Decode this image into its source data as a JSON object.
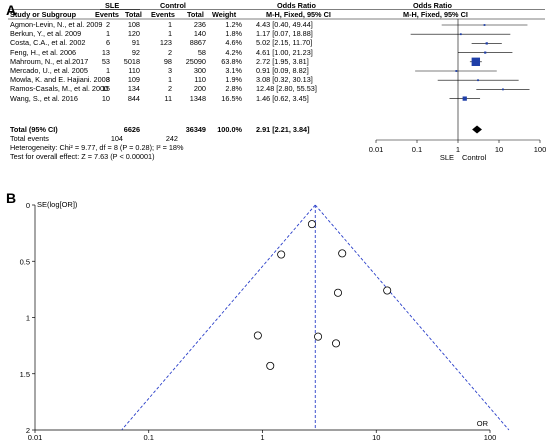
{
  "panel_a": {
    "label": "A",
    "header": {
      "group_sle": "SLE",
      "group_control": "Control",
      "col_study": "Study or Subgroup",
      "col_events1": "Events",
      "col_total1": "Total",
      "col_events2": "Events",
      "col_total2": "Total",
      "col_weight": "Weight",
      "col_or": "Odds Ratio",
      "col_or_sub": "M-H, Fixed, 95% CI",
      "col_plot": "Odds Ratio",
      "col_plot_sub": "M-H, Fixed, 95% CI"
    },
    "studies": [
      {
        "name": "Agmon-Levin, N., et al. 2009",
        "e1": "2",
        "t1": "108",
        "e2": "1",
        "t2": "236",
        "w": "1.2%",
        "ci": "4.43 [0.40, 49.44]",
        "or": 4.43,
        "lo": 0.4,
        "hi": 49.44,
        "wt": 1.2
      },
      {
        "name": "Berkun, Y., et al. 2009",
        "e1": "1",
        "t1": "120",
        "e2": "1",
        "t2": "140",
        "w": "1.8%",
        "ci": "1.17 [0.07, 18.88]",
        "or": 1.17,
        "lo": 0.07,
        "hi": 18.88,
        "wt": 1.8
      },
      {
        "name": "Costa, C.A., et al. 2002",
        "e1": "6",
        "t1": "91",
        "e2": "123",
        "t2": "8867",
        "w": "4.6%",
        "ci": "5.02 [2.15, 11.70]",
        "or": 5.02,
        "lo": 2.15,
        "hi": 11.7,
        "wt": 4.6
      },
      {
        "name": "Feng, H., et al. 2006",
        "e1": "13",
        "t1": "92",
        "e2": "2",
        "t2": "58",
        "w": "4.2%",
        "ci": "4.61 [1.00, 21.23]",
        "or": 4.61,
        "lo": 1.0,
        "hi": 21.23,
        "wt": 4.2
      },
      {
        "name": "Mahroum, N., et al.2017",
        "e1": "53",
        "t1": "5018",
        "e2": "98",
        "t2": "25090",
        "w": "63.8%",
        "ci": "2.72 [1.95, 3.81]",
        "or": 2.72,
        "lo": 1.95,
        "hi": 3.81,
        "wt": 63.8
      },
      {
        "name": "Mercado, U., et al. 2005",
        "e1": "1",
        "t1": "110",
        "e2": "3",
        "t2": "300",
        "w": "3.1%",
        "ci": "0.91 [0.09, 8.82]",
        "or": 0.91,
        "lo": 0.09,
        "hi": 8.82,
        "wt": 3.1
      },
      {
        "name": "Mowla, K. and E. Hajiani. 2008",
        "e1": "3",
        "t1": "109",
        "e2": "1",
        "t2": "110",
        "w": "1.9%",
        "ci": "3.08 [0.32, 30.13]",
        "or": 3.08,
        "lo": 0.32,
        "hi": 30.13,
        "wt": 1.9
      },
      {
        "name": "Ramos-Casals, M., et al. 2000",
        "e1": "15",
        "t1": "134",
        "e2": "2",
        "t2": "200",
        "w": "2.8%",
        "ci": "12.48 [2.80, 55.53]",
        "or": 12.48,
        "lo": 2.8,
        "hi": 55.53,
        "wt": 2.8
      },
      {
        "name": "Wang, S., et al. 2016",
        "e1": "10",
        "t1": "844",
        "e2": "11",
        "t2": "1348",
        "w": "16.5%",
        "ci": "1.46 [0.62, 3.45]",
        "or": 1.46,
        "lo": 0.62,
        "hi": 3.45,
        "wt": 16.5
      }
    ],
    "total": {
      "name": "Total (95% CI)",
      "t1": "6626",
      "t2": "36349",
      "w": "100.0%",
      "ci": "2.91 [2.21, 3.84]",
      "or": 2.91,
      "lo": 2.21,
      "hi": 3.84
    },
    "total_events": {
      "label": "Total events",
      "e1": "104",
      "e2": "242"
    },
    "heterogeneity": "Heterogeneity: Chi² = 9.77, df = 8 (P = 0.28); I² = 18%",
    "overall_effect": "Test for overall effect: Z = 7.63 (P < 0.00001)",
    "axis_ticks": [
      "0.01",
      "0.1",
      "1",
      "10",
      "100"
    ],
    "favours_left": "SLE",
    "favours_right": "Control",
    "colors": {
      "square": "#1f3fa8",
      "diamond": "#000000"
    }
  },
  "panel_b": {
    "label": "B",
    "chart_data": {
      "type": "scatter",
      "title": "",
      "xlabel": "OR",
      "ylabel": "SE(log[OR])",
      "x_scale": "log",
      "xlim": [
        0.01,
        100
      ],
      "ylim": [
        0,
        2
      ],
      "y_inverted": true,
      "x_ticks": [
        "0.01",
        "0.1",
        "1",
        "10",
        "100"
      ],
      "y_ticks": [
        "0",
        "0.5",
        "1",
        "1.5",
        "2"
      ],
      "pooled_or": 2.91,
      "points": [
        {
          "or": 2.72,
          "se": 0.17
        },
        {
          "or": 1.46,
          "se": 0.44
        },
        {
          "or": 5.02,
          "se": 0.43
        },
        {
          "or": 12.48,
          "se": 0.76
        },
        {
          "or": 4.61,
          "se": 0.78
        },
        {
          "or": 0.91,
          "se": 1.16
        },
        {
          "or": 3.08,
          "se": 1.17
        },
        {
          "or": 4.43,
          "se": 1.23
        },
        {
          "or": 1.17,
          "se": 1.43
        }
      ],
      "colors": {
        "funnel": "#2a3fc9",
        "points": "#000000"
      }
    }
  }
}
